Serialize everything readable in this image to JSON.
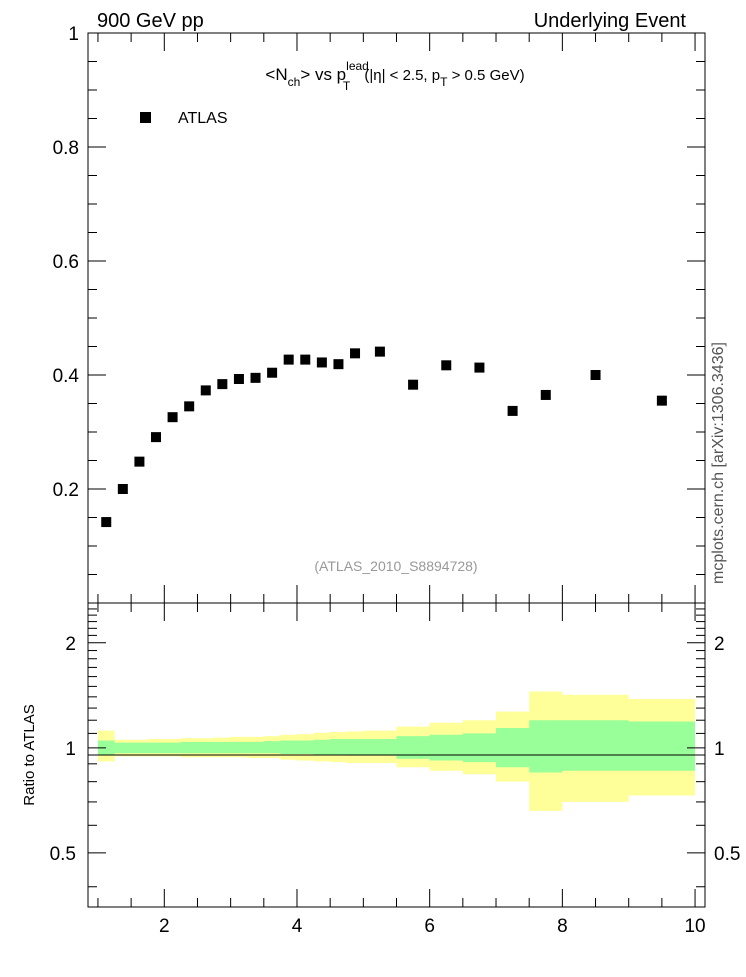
{
  "header": {
    "left": "900 GeV pp",
    "right": "Underlying Event"
  },
  "plot": {
    "title_main": "<N",
    "title_sub1": "ch",
    "title_mid": "> vs p",
    "title_sup": "lead",
    "title_sub2": "T",
    "title_rest1": " (|η| < 2.5, p",
    "title_sub3": "T",
    "title_rest2": " > 0.5 GeV)",
    "analysis_label": "(ATLAS_2010_S8894728)",
    "side_label": "mcplots.cern.ch [arXiv:1306.3436]",
    "ratio_ylabel": "Ratio to ATLAS"
  },
  "legend": {
    "entry": "ATLAS",
    "position": "top-left"
  },
  "colors": {
    "band_outer": "#ffff99",
    "band_inner": "#99ff99",
    "marker": "#000000"
  },
  "chart_data": [
    {
      "type": "scatter",
      "series": [
        {
          "name": "ATLAS",
          "x": [
            1.125,
            1.375,
            1.625,
            1.875,
            2.125,
            2.375,
            2.625,
            2.875,
            3.125,
            3.375,
            3.625,
            3.875,
            4.125,
            4.375,
            4.625,
            4.875,
            5.25,
            5.75,
            6.25,
            6.75,
            7.25,
            7.75,
            8.5,
            9.5
          ],
          "y": [
            0.142,
            0.2,
            0.248,
            0.291,
            0.326,
            0.345,
            0.373,
            0.384,
            0.393,
            0.395,
            0.404,
            0.427,
            0.427,
            0.422,
            0.419,
            0.438,
            0.441,
            0.383,
            0.417,
            0.413,
            0.337,
            0.365,
            0.4,
            0.355
          ]
        }
      ],
      "xlim": [
        0.85,
        10.15
      ],
      "ylim": [
        0,
        1.0
      ],
      "yticks": [
        0.2,
        0.4,
        0.6,
        0.8,
        1
      ],
      "ytick_labels": [
        "0.2",
        "0.4",
        "0.6",
        "0.8",
        "1"
      ]
    },
    {
      "type": "area",
      "ylabel": "Ratio to ATLAS",
      "log_y": true,
      "ylim": [
        0.35,
        2.6
      ],
      "xlim": [
        0.85,
        10.15
      ],
      "xticks": [
        2,
        4,
        6,
        8,
        10
      ],
      "xtick_labels": [
        "2",
        "4",
        "6",
        "8",
        "10"
      ],
      "yticks": [
        0.5,
        1,
        2
      ],
      "ytick_labels": [
        "0.5",
        "1",
        "2"
      ],
      "bin_edges": [
        1.0,
        1.25,
        1.5,
        1.75,
        2.0,
        2.25,
        2.5,
        2.75,
        3.0,
        3.25,
        3.5,
        3.75,
        4.0,
        4.25,
        4.5,
        4.75,
        5.0,
        5.5,
        6.0,
        6.5,
        7.0,
        7.5,
        8.0,
        9.0,
        10.0
      ],
      "inner_band": {
        "lo": [
          0.955,
          0.965,
          0.965,
          0.965,
          0.965,
          0.965,
          0.965,
          0.965,
          0.965,
          0.965,
          0.965,
          0.96,
          0.96,
          0.955,
          0.955,
          0.95,
          0.95,
          0.93,
          0.92,
          0.91,
          0.88,
          0.85,
          0.86,
          0.86
        ],
        "hi": [
          1.05,
          1.035,
          1.035,
          1.035,
          1.035,
          1.04,
          1.04,
          1.04,
          1.04,
          1.04,
          1.045,
          1.05,
          1.05,
          1.055,
          1.06,
          1.06,
          1.06,
          1.08,
          1.09,
          1.1,
          1.14,
          1.2,
          1.2,
          1.19
        ]
      },
      "outer_band": {
        "lo": [
          0.915,
          0.945,
          0.945,
          0.945,
          0.945,
          0.94,
          0.94,
          0.94,
          0.94,
          0.935,
          0.935,
          0.925,
          0.92,
          0.915,
          0.91,
          0.905,
          0.905,
          0.88,
          0.86,
          0.84,
          0.8,
          0.66,
          0.7,
          0.73
        ],
        "hi": [
          1.12,
          1.055,
          1.055,
          1.06,
          1.06,
          1.065,
          1.065,
          1.07,
          1.075,
          1.075,
          1.08,
          1.09,
          1.095,
          1.105,
          1.11,
          1.115,
          1.12,
          1.15,
          1.18,
          1.2,
          1.27,
          1.45,
          1.42,
          1.38
        ]
      }
    }
  ]
}
